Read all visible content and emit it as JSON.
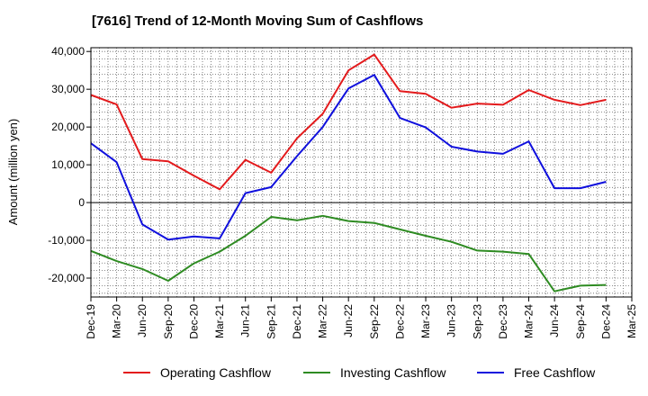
{
  "chart_data": {
    "type": "line",
    "title": "[7616]  Trend of 12-Month Moving Sum of Cashflows",
    "xlabel": "",
    "ylabel": "Amount (million yen)",
    "ylim": [
      -25000,
      41000
    ],
    "yticks": [
      -20000,
      -10000,
      0,
      10000,
      20000,
      30000,
      40000
    ],
    "ytick_labels": [
      "-20,000",
      "-10,000",
      "0",
      "10,000",
      "20,000",
      "30,000",
      "40,000"
    ],
    "x": [
      "Dec-19",
      "Mar-20",
      "Jun-20",
      "Sep-20",
      "Dec-20",
      "Mar-21",
      "Jun-21",
      "Sep-21",
      "Dec-21",
      "Mar-22",
      "Jun-22",
      "Sep-22",
      "Dec-22",
      "Mar-23",
      "Jun-23",
      "Sep-23",
      "Dec-23",
      "Mar-24",
      "Jun-24",
      "Sep-24",
      "Dec-24",
      "Mar-25"
    ],
    "grid": true,
    "legend_position": "bottom",
    "series": [
      {
        "name": "Operating Cashflow",
        "color": "#e31a1c",
        "values": [
          28500,
          26000,
          11500,
          10900,
          7100,
          3500,
          11300,
          7900,
          17000,
          23500,
          35000,
          39200,
          29500,
          28800,
          25100,
          26200,
          25900,
          29800,
          27200,
          25800,
          27200,
          null
        ]
      },
      {
        "name": "Investing Cashflow",
        "color": "#2e8b22",
        "values": [
          -12800,
          -15500,
          -17600,
          -20700,
          -16100,
          -13000,
          -8800,
          -3800,
          -4700,
          -3500,
          -4900,
          -5400,
          -7100,
          -8800,
          -10400,
          -12700,
          -13000,
          -13600,
          -23500,
          -22000,
          -21800,
          null
        ]
      },
      {
        "name": "Free Cashflow",
        "color": "#1010dd",
        "values": [
          15700,
          10700,
          -5800,
          -9800,
          -9000,
          -9500,
          2500,
          4100,
          12300,
          20000,
          30200,
          33800,
          22400,
          19900,
          14800,
          13500,
          12900,
          16200,
          3800,
          3800,
          5500,
          null
        ]
      }
    ]
  }
}
